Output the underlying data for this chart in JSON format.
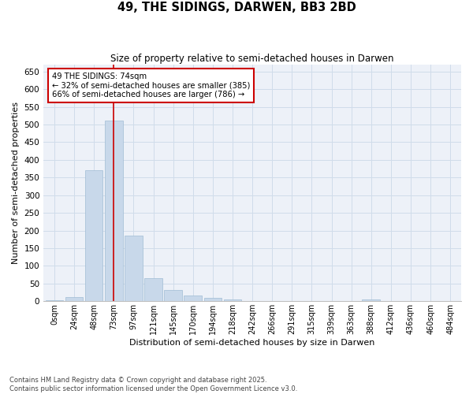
{
  "title": "49, THE SIDINGS, DARWEN, BB3 2BD",
  "subtitle": "Size of property relative to semi-detached houses in Darwen",
  "xlabel": "Distribution of semi-detached houses by size in Darwen",
  "ylabel": "Number of semi-detached properties",
  "bar_color": "#c8d8ea",
  "bar_edge_color": "#a0bcd4",
  "grid_color": "#d0dcea",
  "bg_color": "#edf1f8",
  "annotation_box_color": "#cc0000",
  "vline_color": "#cc0000",
  "annotation_text": "49 THE SIDINGS: 74sqm\n← 32% of semi-detached houses are smaller (385)\n66% of semi-detached houses are larger (786) →",
  "bin_labels": [
    "0sqm",
    "24sqm",
    "48sqm",
    "73sqm",
    "97sqm",
    "121sqm",
    "145sqm",
    "170sqm",
    "194sqm",
    "218sqm",
    "242sqm",
    "266sqm",
    "291sqm",
    "315sqm",
    "339sqm",
    "363sqm",
    "388sqm",
    "412sqm",
    "436sqm",
    "460sqm",
    "484sqm"
  ],
  "bin_values": [
    2,
    12,
    370,
    510,
    185,
    65,
    32,
    17,
    10,
    6,
    0,
    0,
    0,
    0,
    0,
    0,
    5,
    0,
    0,
    0,
    0
  ],
  "ylim": [
    0,
    670
  ],
  "yticks": [
    0,
    50,
    100,
    150,
    200,
    250,
    300,
    350,
    400,
    450,
    500,
    550,
    600,
    650
  ],
  "vline_bin_index": 3,
  "footnote": "Contains HM Land Registry data © Crown copyright and database right 2025.\nContains public sector information licensed under the Open Government Licence v3.0."
}
